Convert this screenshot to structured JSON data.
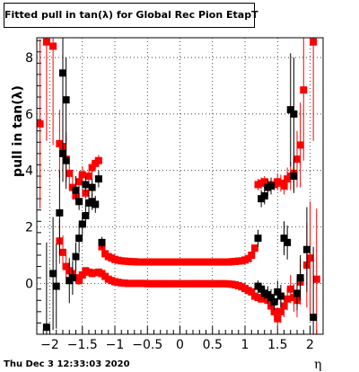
{
  "title": "Fitted pull in tan(λ) for Global Rec Pion EtapT",
  "date_stamp": "Thu Dec  3 12:33:03 2020",
  "chart_data": {
    "type": "scatter",
    "title": "Fitted pull in tan(λ) for Global Rec Pion EtapT",
    "xlabel": "η",
    "ylabel": "pull in tan(λ)",
    "xlim": [
      -2.2,
      2.2
    ],
    "ylim": [
      -1.8,
      8.7
    ],
    "grid": true,
    "x_ticks": [
      -2,
      -1.5,
      -1,
      -0.5,
      0,
      0.5,
      1,
      1.5,
      2
    ],
    "x_tick_labels": [
      "−2",
      "−1.5",
      "−1",
      "−0.5",
      "0",
      "0.5",
      "1",
      "1.5",
      "2"
    ],
    "y_ticks": [
      0,
      2,
      4,
      6,
      8
    ],
    "y_tick_labels": [
      "0",
      "2",
      "4",
      "6",
      "8"
    ],
    "series": [
      {
        "color": "#ff0000",
        "points": [
          [
            -2.15,
            5.65,
            3.0
          ],
          [
            -2.05,
            8.55,
            3.5
          ],
          [
            -1.95,
            8.4,
            3.5
          ],
          [
            -1.85,
            4.95,
            1.2
          ],
          [
            -1.8,
            4.85,
            1.0
          ],
          [
            -1.75,
            4.4,
            0.8
          ],
          [
            -1.7,
            3.9,
            0.6
          ],
          [
            -1.65,
            3.4,
            0.4
          ],
          [
            -1.6,
            3.1,
            0.3
          ],
          [
            -1.55,
            3.6,
            0.3
          ],
          [
            -1.5,
            3.85,
            0.3
          ],
          [
            -1.45,
            3.2,
            0.2
          ],
          [
            -1.4,
            3.8,
            0.2
          ],
          [
            -1.35,
            4.1,
            0.2
          ],
          [
            -1.3,
            4.25,
            0.2
          ],
          [
            -1.25,
            4.35,
            0.2
          ],
          [
            -1.2,
            1.3,
            0.1
          ],
          [
            -1.15,
            1.05,
            0.05
          ],
          [
            -1.1,
            0.95,
            0.05
          ],
          [
            -1.05,
            0.9,
            0.05
          ],
          [
            -1.0,
            0.85,
            0.04
          ],
          [
            -0.95,
            0.82,
            0.04
          ],
          [
            -0.9,
            0.8,
            0.04
          ],
          [
            -0.85,
            0.79,
            0.04
          ],
          [
            -0.8,
            0.78,
            0.04
          ],
          [
            -0.75,
            0.77,
            0.04
          ],
          [
            -0.7,
            0.77,
            0.04
          ],
          [
            -0.65,
            0.76,
            0.04
          ],
          [
            -0.6,
            0.76,
            0.04
          ],
          [
            -0.55,
            0.76,
            0.04
          ],
          [
            -0.5,
            0.76,
            0.04
          ],
          [
            -0.45,
            0.76,
            0.04
          ],
          [
            -0.4,
            0.76,
            0.04
          ],
          [
            -0.35,
            0.76,
            0.04
          ],
          [
            -0.3,
            0.76,
            0.04
          ],
          [
            -0.25,
            0.76,
            0.04
          ],
          [
            -0.2,
            0.76,
            0.04
          ],
          [
            -0.15,
            0.76,
            0.04
          ],
          [
            -0.1,
            0.76,
            0.04
          ],
          [
            -0.05,
            0.76,
            0.04
          ],
          [
            0.0,
            0.76,
            0.04
          ],
          [
            0.05,
            0.76,
            0.04
          ],
          [
            0.1,
            0.76,
            0.04
          ],
          [
            0.15,
            0.76,
            0.04
          ],
          [
            0.2,
            0.76,
            0.04
          ],
          [
            0.25,
            0.76,
            0.04
          ],
          [
            0.3,
            0.76,
            0.04
          ],
          [
            0.35,
            0.76,
            0.04
          ],
          [
            0.4,
            0.76,
            0.04
          ],
          [
            0.45,
            0.76,
            0.04
          ],
          [
            0.5,
            0.76,
            0.04
          ],
          [
            0.55,
            0.76,
            0.04
          ],
          [
            0.6,
            0.76,
            0.04
          ],
          [
            0.65,
            0.76,
            0.04
          ],
          [
            0.7,
            0.76,
            0.04
          ],
          [
            0.75,
            0.76,
            0.04
          ],
          [
            0.8,
            0.77,
            0.04
          ],
          [
            0.85,
            0.78,
            0.04
          ],
          [
            0.9,
            0.79,
            0.04
          ],
          [
            0.95,
            0.8,
            0.04
          ],
          [
            1.0,
            0.83,
            0.05
          ],
          [
            1.05,
            0.88,
            0.05
          ],
          [
            1.1,
            1.0,
            0.1
          ],
          [
            1.15,
            1.25,
            0.1
          ],
          [
            1.2,
            3.5,
            0.2
          ],
          [
            1.25,
            3.55,
            0.2
          ],
          [
            1.3,
            3.6,
            0.2
          ],
          [
            1.35,
            3.5,
            0.2
          ],
          [
            1.4,
            3.45,
            0.2
          ],
          [
            1.45,
            3.5,
            0.2
          ],
          [
            1.5,
            3.6,
            0.3
          ],
          [
            1.55,
            3.55,
            0.3
          ],
          [
            1.6,
            3.45,
            0.3
          ],
          [
            1.65,
            3.7,
            0.4
          ],
          [
            1.7,
            3.8,
            0.5
          ],
          [
            1.75,
            3.9,
            0.6
          ],
          [
            1.8,
            4.4,
            1.0
          ],
          [
            1.85,
            4.9,
            1.5
          ],
          [
            1.9,
            6.85,
            2.5
          ],
          [
            2.05,
            8.55,
            3.5
          ]
        ]
      },
      {
        "color": "#ff0000",
        "points": [
          [
            -1.85,
            1.5,
            0.8
          ],
          [
            -1.8,
            1.1,
            0.6
          ],
          [
            -1.75,
            0.6,
            0.4
          ],
          [
            -1.7,
            0.45,
            0.3
          ],
          [
            -1.65,
            0.35,
            0.2
          ],
          [
            -1.6,
            0.2,
            0.2
          ],
          [
            -1.55,
            0.1,
            0.15
          ],
          [
            -1.5,
            0.3,
            0.15
          ],
          [
            -1.45,
            0.45,
            0.1
          ],
          [
            -1.4,
            0.4,
            0.1
          ],
          [
            -1.35,
            0.35,
            0.1
          ],
          [
            -1.3,
            0.38,
            0.08
          ],
          [
            -1.25,
            0.4,
            0.08
          ],
          [
            -1.2,
            0.35,
            0.08
          ],
          [
            -1.15,
            0.25,
            0.05
          ],
          [
            -1.1,
            0.15,
            0.05
          ],
          [
            -1.05,
            0.1,
            0.04
          ],
          [
            -1.0,
            0.06,
            0.04
          ],
          [
            -0.95,
            0.04,
            0.04
          ],
          [
            -0.9,
            0.02,
            0.03
          ],
          [
            -0.85,
            0.01,
            0.03
          ],
          [
            -0.8,
            0.0,
            0.03
          ],
          [
            -0.75,
            0.0,
            0.03
          ],
          [
            -0.7,
            0.0,
            0.03
          ],
          [
            -0.65,
            0.0,
            0.03
          ],
          [
            -0.6,
            0.0,
            0.03
          ],
          [
            -0.55,
            0.0,
            0.03
          ],
          [
            -0.5,
            -0.01,
            0.03
          ],
          [
            -0.45,
            -0.01,
            0.03
          ],
          [
            -0.4,
            -0.01,
            0.03
          ],
          [
            -0.35,
            -0.01,
            0.03
          ],
          [
            -0.3,
            -0.01,
            0.03
          ],
          [
            -0.25,
            -0.01,
            0.03
          ],
          [
            -0.2,
            -0.01,
            0.03
          ],
          [
            -0.15,
            -0.01,
            0.03
          ],
          [
            -0.1,
            -0.01,
            0.03
          ],
          [
            -0.05,
            -0.01,
            0.03
          ],
          [
            0.0,
            -0.01,
            0.03
          ],
          [
            0.05,
            -0.01,
            0.03
          ],
          [
            0.1,
            -0.01,
            0.03
          ],
          [
            0.15,
            -0.01,
            0.03
          ],
          [
            0.2,
            -0.01,
            0.03
          ],
          [
            0.25,
            -0.01,
            0.03
          ],
          [
            0.3,
            -0.01,
            0.03
          ],
          [
            0.35,
            -0.01,
            0.03
          ],
          [
            0.4,
            -0.01,
            0.03
          ],
          [
            0.45,
            -0.01,
            0.03
          ],
          [
            0.5,
            -0.01,
            0.03
          ],
          [
            0.55,
            -0.01,
            0.03
          ],
          [
            0.6,
            -0.01,
            0.03
          ],
          [
            0.65,
            -0.01,
            0.03
          ],
          [
            0.7,
            -0.01,
            0.03
          ],
          [
            0.75,
            -0.02,
            0.03
          ],
          [
            0.8,
            -0.03,
            0.03
          ],
          [
            0.85,
            -0.05,
            0.04
          ],
          [
            0.9,
            -0.08,
            0.04
          ],
          [
            0.95,
            -0.12,
            0.04
          ],
          [
            1.0,
            -0.18,
            0.05
          ],
          [
            1.05,
            -0.25,
            0.05
          ],
          [
            1.1,
            -0.3,
            0.08
          ],
          [
            1.15,
            -0.45,
            0.1
          ],
          [
            1.2,
            -0.5,
            0.1
          ],
          [
            1.25,
            -0.55,
            0.1
          ],
          [
            1.3,
            -0.5,
            0.1
          ],
          [
            1.35,
            -0.6,
            0.15
          ],
          [
            1.4,
            -0.8,
            0.2
          ],
          [
            1.45,
            -1.0,
            0.3
          ],
          [
            1.5,
            -1.25,
            0.4
          ],
          [
            1.55,
            -1.0,
            0.4
          ],
          [
            1.6,
            -0.8,
            0.4
          ],
          [
            1.65,
            -0.55,
            0.4
          ],
          [
            1.7,
            -0.2,
            0.5
          ],
          [
            1.75,
            -0.5,
            0.5
          ],
          [
            1.8,
            -0.6,
            0.6
          ],
          [
            1.85,
            0.05,
            0.8
          ],
          [
            1.95,
            0.65,
            1.5
          ],
          [
            2.0,
            0.9,
            2.0
          ],
          [
            2.1,
            0.15,
            2.5
          ]
        ]
      },
      {
        "color": "#000000",
        "points": [
          [
            -2.05,
            -1.55,
            3.0
          ],
          [
            -1.95,
            0.35,
            2.0
          ],
          [
            -1.9,
            -0.1,
            1.5
          ],
          [
            -1.85,
            2.5,
            1.5
          ],
          [
            -1.8,
            7.45,
            2.0
          ],
          [
            -1.75,
            6.5,
            1.5
          ],
          [
            -1.7,
            0.1,
            0.8
          ],
          [
            -1.65,
            0.2,
            0.6
          ],
          [
            -1.6,
            0.95,
            0.5
          ],
          [
            -1.55,
            1.6,
            0.5
          ],
          [
            -1.5,
            2.1,
            0.4
          ],
          [
            -1.45,
            2.4,
            0.4
          ],
          [
            -1.4,
            2.85,
            0.4
          ],
          [
            -1.35,
            2.9,
            0.3
          ],
          [
            -1.3,
            2.8,
            0.3
          ],
          [
            -1.25,
            3.7,
            0.3
          ],
          [
            -1.2,
            1.45,
            0.2
          ],
          [
            -1.35,
            3.4,
            0.3
          ],
          [
            -1.45,
            3.5,
            0.3
          ],
          [
            -1.55,
            2.9,
            0.3
          ],
          [
            1.2,
            1.6,
            0.3
          ],
          [
            1.25,
            3.0,
            0.3
          ],
          [
            1.3,
            3.1,
            0.3
          ],
          [
            1.35,
            3.4,
            0.3
          ],
          [
            1.4,
            3.45,
            0.3
          ],
          [
            1.2,
            -0.1,
            0.2
          ],
          [
            1.25,
            -0.2,
            0.2
          ],
          [
            1.3,
            -0.35,
            0.2
          ],
          [
            1.35,
            -0.4,
            0.3
          ],
          [
            1.4,
            -0.5,
            0.3
          ],
          [
            1.5,
            -0.3,
            0.4
          ],
          [
            1.55,
            -0.45,
            0.4
          ],
          [
            1.6,
            1.6,
            0.6
          ],
          [
            1.65,
            1.45,
            0.6
          ],
          [
            1.7,
            6.15,
            2.0
          ],
          [
            1.75,
            6.0,
            2.0
          ],
          [
            1.8,
            -0.35,
            0.6
          ],
          [
            1.85,
            0.2,
            0.8
          ],
          [
            1.95,
            1.2,
            1.5
          ],
          [
            2.05,
            -1.2,
            2.5
          ],
          [
            -1.75,
            4.35,
            1.0
          ],
          [
            -1.8,
            4.6,
            1.0
          ],
          [
            1.45,
            -0.65,
            0.3
          ],
          [
            -1.6,
            3.3,
            0.5
          ],
          [
            1.75,
            3.8,
            0.6
          ]
        ]
      }
    ]
  }
}
